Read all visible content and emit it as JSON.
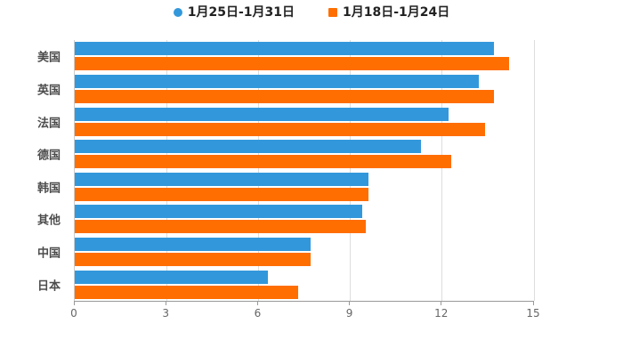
{
  "page": {
    "background": "#FFFFFF"
  },
  "colors": {
    "series1": "#3398DB",
    "series2": "#FF6E00",
    "gridline": "#DDDDDD",
    "x_axis_line": "#999999",
    "y_axis_line": "#CCCCCC",
    "tick_label_text": "#666666",
    "category_label_text": "#4D4D4D",
    "legend_text": "#222222"
  },
  "chart_data": {
    "type": "bar",
    "orientation": "horizontal",
    "title": "",
    "xlabel": "",
    "ylabel": "",
    "categories": [
      "美国",
      "英国",
      "法国",
      "德国",
      "韩国",
      "其他",
      "中国",
      "日本"
    ],
    "series": [
      {
        "name": "1月25日-1月31日",
        "color": "#3398DB",
        "marker": "circle",
        "values": [
          13.7,
          13.2,
          12.2,
          11.3,
          9.6,
          9.4,
          7.7,
          6.3
        ]
      },
      {
        "name": "1月18日-1月24日",
        "color": "#FF6E00",
        "marker": "square",
        "values": [
          14.2,
          13.7,
          13.4,
          12.3,
          9.6,
          9.5,
          7.7,
          7.3
        ]
      }
    ],
    "xlim": [
      0,
      15
    ],
    "x_ticks": [
      0,
      3,
      6,
      9,
      12,
      15
    ],
    "grid": true,
    "legend_position": "top"
  }
}
